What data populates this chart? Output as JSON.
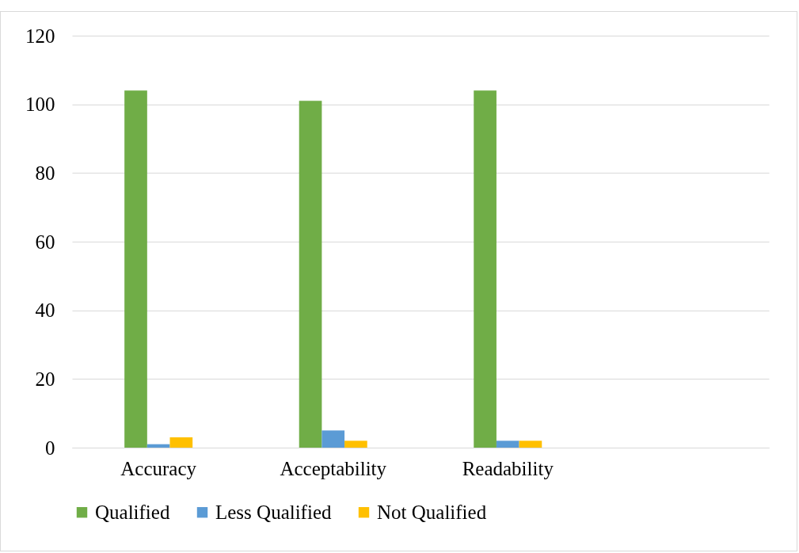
{
  "chart_data": {
    "type": "bar",
    "categories": [
      "Accuracy",
      "Acceptability",
      "Readability",
      null
    ],
    "series": [
      {
        "name": "Qualified",
        "color": "#70ad47",
        "values": [
          104,
          101,
          104,
          null
        ]
      },
      {
        "name": "Less Qualified",
        "color": "#5b9bd5",
        "values": [
          1,
          5,
          2,
          null
        ]
      },
      {
        "name": "Not Qualified",
        "color": "#ffc000",
        "values": [
          3,
          2,
          2,
          null
        ]
      }
    ],
    "ylim": [
      0,
      120
    ],
    "yticks": [
      0,
      20,
      40,
      60,
      80,
      100,
      120
    ],
    "grid": "y",
    "legend": "bottom"
  }
}
